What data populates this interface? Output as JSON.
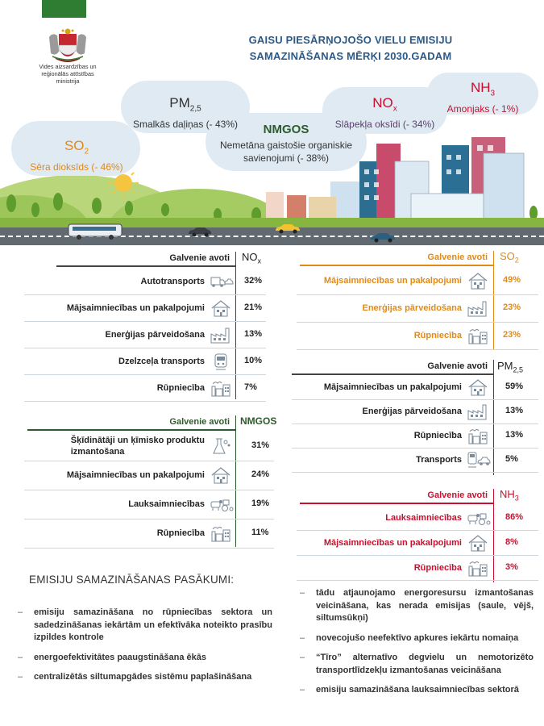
{
  "header": {
    "ministry_name": "Vides aizsardzības un reģionālās attīstības ministrija",
    "title_line1": "GAISU PIESĀRŅOJOŠO VIELU EMISIJU",
    "title_line2": "SAMAZINĀŠANAS MĒRĶI 2030.GADAM"
  },
  "clouds": {
    "so2": {
      "formula": "SO",
      "sub": "2",
      "name": "Sēra dioksīds (- 46%)"
    },
    "pm25": {
      "formula": "PM",
      "sub": "2,5",
      "name": "Smalkās daļiņas (- 43%)"
    },
    "nmgos": {
      "formula": "NMGOS",
      "name_line1": "Nemetāna gaistošie organiskie",
      "name_line2": "savienojumi (- 38%)"
    },
    "nox": {
      "formula": "NO",
      "sub": "x",
      "name": "Slāpekļa oksīdi (- 34%)"
    },
    "nh3": {
      "formula": "NH",
      "sub": "3",
      "name": "Amonjaks (- 1%)"
    }
  },
  "colors": {
    "orange": "#e28a17",
    "red": "#c8102e",
    "green": "#2e5a2e",
    "blue": "#2a5a8a"
  },
  "tables": {
    "source_header": "Galvenie avoti",
    "nox": {
      "pollutant": "NO",
      "sub": "x",
      "rows": [
        {
          "label": "Autotransports",
          "pct": "32%",
          "icon": "car-truck-icon"
        },
        {
          "label": "Mājsaimniecības  un pakalpojumi",
          "pct": "21%",
          "icon": "house-icon"
        },
        {
          "label": "Enerģijas pārveidošana",
          "pct": "13%",
          "icon": "factory-icon"
        },
        {
          "label": "Dzelzceļa transports",
          "pct": "10%",
          "icon": "train-icon"
        },
        {
          "label": "Rūpniecība",
          "pct": "7%",
          "icon": "industry-icon"
        }
      ]
    },
    "nmgos": {
      "pollutant": "NMGOS",
      "rows": [
        {
          "label_line1": "Šķīdinātāji un ķīmisko produktu",
          "label_line2": "izmantošana",
          "pct": "31%",
          "icon": "chemical-icon"
        },
        {
          "label": "Mājsaimniecības un pakalpojumi",
          "pct": "24%",
          "icon": "house-icon"
        },
        {
          "label": "Lauksaimniecības",
          "pct": "19%",
          "icon": "cow-tractor-icon"
        },
        {
          "label": "Rūpniecība",
          "pct": "11%",
          "icon": "industry-icon"
        }
      ]
    },
    "so2": {
      "pollutant": "SO",
      "sub": "2",
      "rows": [
        {
          "label": "Mājsaimniecības un pakalpojumi",
          "pct": "49%",
          "icon": "house-icon"
        },
        {
          "label": "Enerģijas pārveidošana",
          "pct": "23%",
          "icon": "factory-icon"
        },
        {
          "label": "Rūpniecība",
          "pct": "23%",
          "icon": "industry-icon"
        }
      ]
    },
    "pm25": {
      "pollutant": "PM",
      "sub": "2,5",
      "rows": [
        {
          "label": "Mājsaimniecības un pakalpojumi",
          "pct": "59%",
          "icon": "house-icon"
        },
        {
          "label": "Enerģijas pārveidošana",
          "pct": "13%",
          "icon": "factory-icon"
        },
        {
          "label": "Rūpniecība",
          "pct": "13%",
          "icon": "industry-icon"
        },
        {
          "label": "Transports",
          "pct": "5%",
          "icon": "transport-icon"
        }
      ]
    },
    "nh3": {
      "pollutant": "NH",
      "sub": "3",
      "rows": [
        {
          "label": "Lauksaimniecības",
          "pct": "86%",
          "icon": "cow-tractor-icon"
        },
        {
          "label": "Mājsaimniecības un pakalpojumi",
          "pct": "8%",
          "icon": "house-icon"
        },
        {
          "label": "Rūpniecība",
          "pct": "3%",
          "icon": "industry-icon"
        }
      ]
    }
  },
  "measures": {
    "title": "EMISIJU SAMAZINĀŠANAS PASĀKUMI:",
    "left": [
      "emisiju samazināšana no rūpniecības sektora un sadedzināšanas iekārtām un efektīvāka noteikto prasību izpildes kontrole",
      "energoefektivitātes paaugstināšana ēkās",
      "centralizētās siltumapgādes sistēmu paplašināšana"
    ],
    "right": [
      "tādu atjaunojamo energoresursu izmantošanas veicināšana, kas nerada emisijas (saule, vējš, siltumsūkņi)",
      "novecojušo neefektīvo apkures iekārtu nomaiņa",
      "“Tīro” alternatīvo degvielu un nemotorizēto transportlīdzekļu izmantošanas veicināšana",
      "emisiju samazināšana lauksaimniecības sektorā"
    ]
  }
}
